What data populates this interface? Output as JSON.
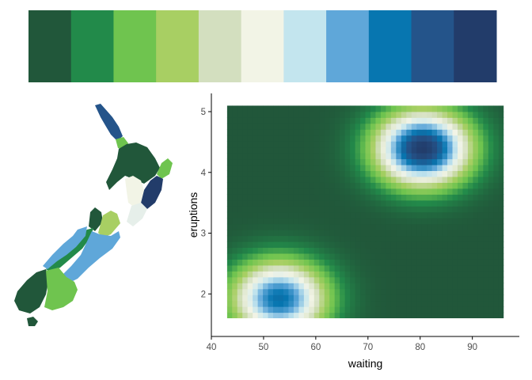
{
  "palette": {
    "swatches": [
      "#21573A",
      "#228A4A",
      "#6FC44F",
      "#A8CF63",
      "#D3DFBF",
      "#F2F4E6",
      "#C3E5EE",
      "#5FA7D9",
      "#0776B0",
      "#24548A",
      "#223C6A"
    ]
  },
  "map": {
    "regions": [
      {
        "color": "#24548A"
      },
      {
        "color": "#6FC44F"
      },
      {
        "color": "#21573A"
      },
      {
        "color": "#6FC44F"
      },
      {
        "color": "#223C6A"
      },
      {
        "color": "#F2F4E6"
      },
      {
        "color": "#E6EFEA"
      },
      {
        "color": "#21573A"
      },
      {
        "color": "#A8CF63"
      },
      {
        "color": "#228A4A"
      },
      {
        "color": "#5FA7D9"
      },
      {
        "color": "#5FA7D9"
      },
      {
        "color": "#21573A"
      },
      {
        "color": "#6FC44F"
      },
      {
        "color": "#21573A"
      }
    ]
  },
  "chart_data": {
    "type": "heatmap",
    "title": "",
    "xlabel": "waiting",
    "ylabel": "eruptions",
    "xlim": [
      40,
      99
    ],
    "ylim": [
      1.3,
      5.3
    ],
    "x_ticks": [
      40,
      50,
      60,
      70,
      80,
      90
    ],
    "y_ticks": [
      2,
      3,
      4,
      5
    ],
    "data_extent": {
      "x": [
        43,
        96
      ],
      "y": [
        1.6,
        5.1
      ]
    },
    "grid": false,
    "legend": "none",
    "density_peaks": [
      {
        "x": 80.5,
        "y": 4.4,
        "level": 1.0
      },
      {
        "x": 53,
        "y": 1.93,
        "level": 0.82
      }
    ],
    "colors": [
      "#21573A",
      "#228A4A",
      "#6FC44F",
      "#A8CF63",
      "#D3DFBF",
      "#F2F4E6",
      "#C3E5EE",
      "#5FA7D9",
      "#0776B0",
      "#24548A",
      "#223C6A"
    ]
  }
}
